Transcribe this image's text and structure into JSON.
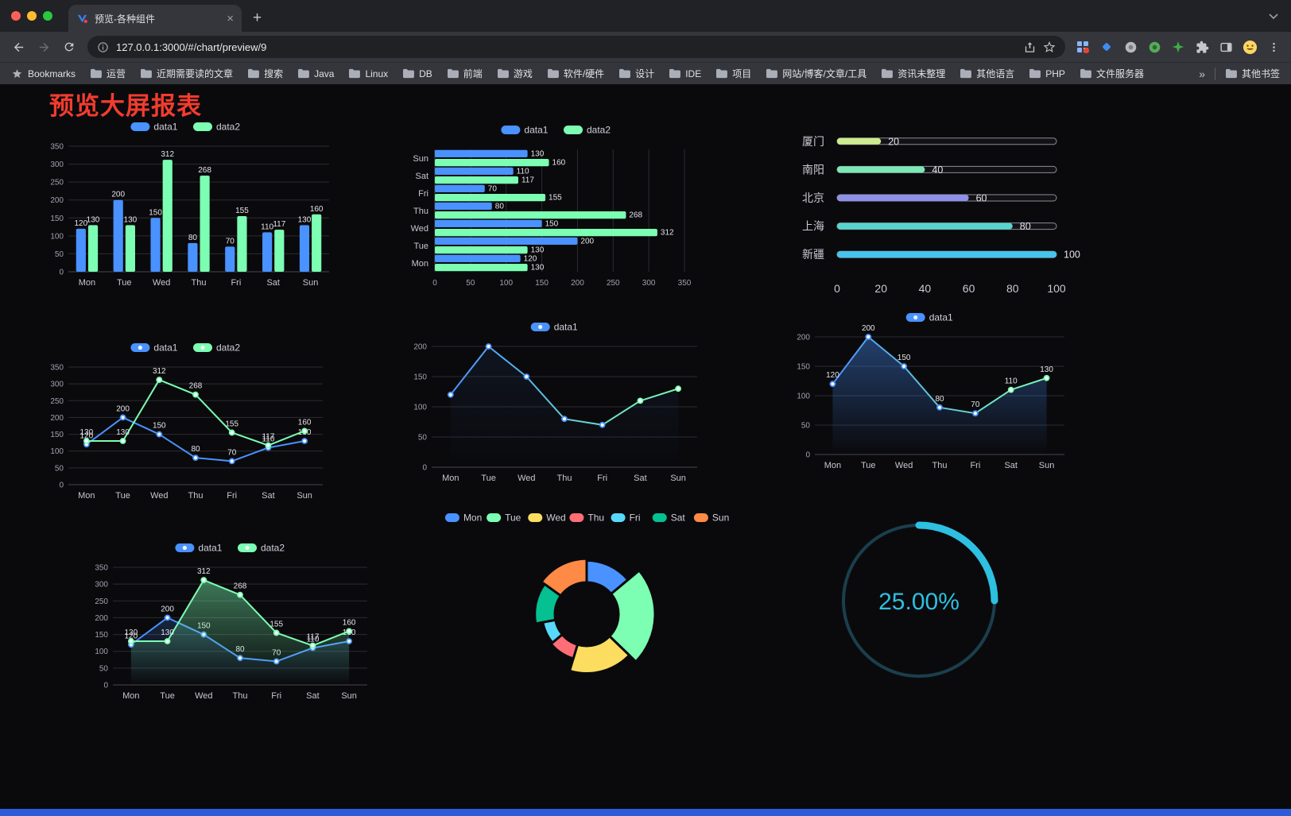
{
  "browser": {
    "tab_title": "预览-各种组件",
    "tab_close_label": "×",
    "new_tab_label": "+",
    "url": "127.0.0.1:3000/#/chart/preview/9",
    "bookmarks_label": "Bookmarks",
    "bookmarks": [
      "运营",
      "近期需要读的文章",
      "搜索",
      "Java",
      "Linux",
      "DB",
      "前端",
      "游戏",
      "软件/硬件",
      "设计",
      "IDE",
      "项目",
      "网站/博客/文章/工具",
      "资讯未整理",
      "其他语言",
      "PHP",
      "文件服务器"
    ],
    "overflow_chevron": "»",
    "other_bookmarks": "其他书签"
  },
  "page": {
    "title": "预览大屏报表",
    "title_color": "#f23c2e",
    "background_color": "#0a0a0d",
    "accent_palette": [
      "#4992ff",
      "#7cffb2",
      "#fddd60",
      "#ff6e76",
      "#58d9f9",
      "#05c091",
      "#ff8a45"
    ]
  },
  "chart_data": [
    {
      "id": "grouped-bar-chart",
      "type": "bar",
      "categories": [
        "Mon",
        "Tue",
        "Wed",
        "Thu",
        "Fri",
        "Sat",
        "Sun"
      ],
      "series": [
        {
          "name": "data1",
          "color": "#4992ff",
          "values": [
            120,
            200,
            150,
            80,
            70,
            110,
            130
          ]
        },
        {
          "name": "data2",
          "color": "#7cffb2",
          "values": [
            130,
            130,
            312,
            268,
            155,
            117,
            160
          ]
        }
      ],
      "ylim": [
        0,
        350
      ],
      "yticks": [
        0,
        50,
        100,
        150,
        200,
        250,
        300,
        350
      ],
      "show_labels": true,
      "legend_position": "top",
      "grid": true
    },
    {
      "id": "horizontal-bar-chart",
      "type": "hbar",
      "categories": [
        "Mon",
        "Tue",
        "Wed",
        "Thu",
        "Fri",
        "Sat",
        "Sun"
      ],
      "series": [
        {
          "name": "data1",
          "color": "#4992ff",
          "values": [
            120,
            200,
            150,
            80,
            70,
            110,
            130
          ]
        },
        {
          "name": "data2",
          "color": "#7cffb2",
          "values": [
            130,
            130,
            312,
            268,
            155,
            117,
            160
          ]
        }
      ],
      "xlim": [
        0,
        350
      ],
      "xticks": [
        0,
        50,
        100,
        150,
        200,
        250,
        300,
        350
      ],
      "show_labels": true,
      "legend_position": "top",
      "grid": true
    },
    {
      "id": "progress-bar-chart",
      "type": "progress",
      "max": 100,
      "xticks": [
        0,
        20,
        40,
        60,
        80,
        100
      ],
      "items": [
        {
          "label": "厦门",
          "value": 20,
          "color": "#cdeb8f"
        },
        {
          "label": "南阳",
          "value": 40,
          "color": "#7ce8b5"
        },
        {
          "label": "北京",
          "value": 60,
          "color": "#8f8fe8"
        },
        {
          "label": "上海",
          "value": 80,
          "color": "#57d4ce"
        },
        {
          "label": "新疆",
          "value": 100,
          "color": "#45c4ee"
        }
      ]
    },
    {
      "id": "line-chart-two-series",
      "type": "line",
      "categories": [
        "Mon",
        "Tue",
        "Wed",
        "Thu",
        "Fri",
        "Sat",
        "Sun"
      ],
      "series": [
        {
          "name": "data1",
          "color": "#4992ff",
          "values": [
            120,
            200,
            150,
            80,
            70,
            110,
            130
          ]
        },
        {
          "name": "data2",
          "color": "#7cffb2",
          "values": [
            130,
            130,
            312,
            268,
            155,
            117,
            160
          ]
        }
      ],
      "ylim": [
        0,
        350
      ],
      "yticks": [
        0,
        50,
        100,
        150,
        200,
        250,
        300,
        350
      ],
      "show_labels": true,
      "legend_position": "top",
      "grid": true
    },
    {
      "id": "line-chart-gradient",
      "type": "line",
      "categories": [
        "Mon",
        "Tue",
        "Wed",
        "Thu",
        "Fri",
        "Sat",
        "Sun"
      ],
      "series": [
        {
          "name": "data1",
          "color": "#4992ff",
          "color2": "#7cffb2",
          "gradient": true,
          "area": true,
          "area_opacity": 0.08,
          "values": [
            120,
            200,
            150,
            80,
            70,
            110,
            130
          ]
        }
      ],
      "ylim": [
        0,
        200
      ],
      "yticks": [
        0,
        50,
        100,
        150,
        200
      ],
      "show_labels": false,
      "legend_position": "top",
      "grid": true
    },
    {
      "id": "line-chart-area",
      "type": "line",
      "categories": [
        "Mon",
        "Tue",
        "Wed",
        "Thu",
        "Fri",
        "Sat",
        "Sun"
      ],
      "series": [
        {
          "name": "data1",
          "color": "#4992ff",
          "color2": "#7cffb2",
          "gradient": true,
          "area": true,
          "area_opacity": 0.4,
          "values": [
            120,
            200,
            150,
            80,
            70,
            110,
            130
          ]
        }
      ],
      "ylim": [
        0,
        200
      ],
      "yticks": [
        0,
        50,
        100,
        150,
        200
      ],
      "show_labels": true,
      "legend_position": "top",
      "grid": true
    },
    {
      "id": "line-chart-two-series-area",
      "type": "line",
      "categories": [
        "Mon",
        "Tue",
        "Wed",
        "Thu",
        "Fri",
        "Sat",
        "Sun"
      ],
      "series": [
        {
          "name": "data1",
          "color": "#4992ff",
          "area": true,
          "area_opacity": 0.2,
          "values": [
            120,
            200,
            150,
            80,
            70,
            110,
            130
          ]
        },
        {
          "name": "data2",
          "color": "#7cffb2",
          "area": true,
          "area_opacity": 0.45,
          "values": [
            130,
            130,
            312,
            268,
            155,
            117,
            160
          ]
        }
      ],
      "ylim": [
        0,
        350
      ],
      "yticks": [
        0,
        50,
        100,
        150,
        200,
        250,
        300,
        350
      ],
      "show_labels": true,
      "legend_position": "top",
      "grid": true
    },
    {
      "id": "rose-pie-chart",
      "type": "rose",
      "legend_position": "top",
      "items": [
        {
          "name": "Mon",
          "value": 120,
          "color": "#4992ff"
        },
        {
          "name": "Tue",
          "value": 200,
          "color": "#7cffb2"
        },
        {
          "name": "Wed",
          "value": 150,
          "color": "#fddd60"
        },
        {
          "name": "Thu",
          "value": 80,
          "color": "#ff6e76"
        },
        {
          "name": "Fri",
          "value": 70,
          "color": "#58d9f9"
        },
        {
          "name": "Sat",
          "value": 110,
          "color": "#05c091"
        },
        {
          "name": "Sun",
          "value": 130,
          "color": "#ff8a45"
        }
      ]
    },
    {
      "id": "gauge-chart",
      "type": "gauge",
      "value": 25,
      "max": 100,
      "label": "25.00%",
      "color": "#2dc0e0",
      "track_color": "#1b3f4c"
    }
  ]
}
